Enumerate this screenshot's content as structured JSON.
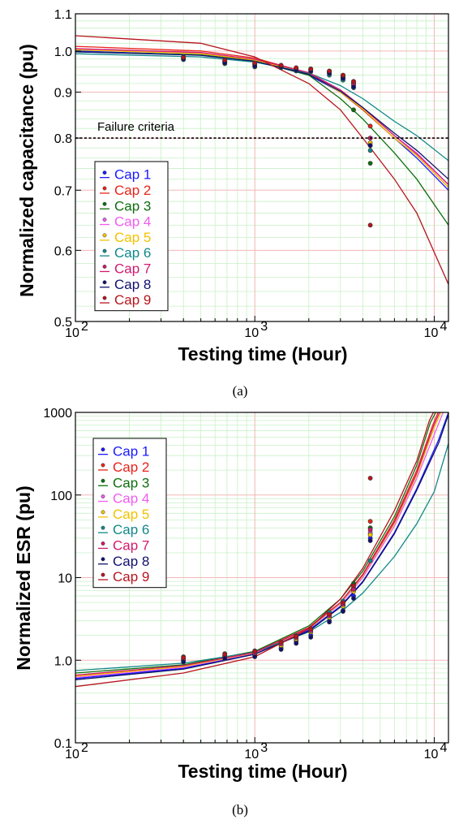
{
  "chart_data": [
    {
      "id": "a",
      "type": "scatter",
      "caption": "(a)",
      "xlabel": "Testing time (Hour)",
      "ylabel": "Normalized capacitance (pu)",
      "x_scale": "log",
      "y_scale": "log",
      "xlim": [
        100,
        12000
      ],
      "ylim": [
        0.5,
        1.1
      ],
      "x_ticks": [
        {
          "v": 100,
          "b": "10",
          "e": "2"
        },
        {
          "v": 1000,
          "b": "10",
          "e": "3"
        },
        {
          "v": 10000,
          "b": "10",
          "e": "4"
        }
      ],
      "y_ticks": [
        {
          "v": 0.5,
          "t": "0.5"
        },
        {
          "v": 0.6,
          "t": "0.6"
        },
        {
          "v": 0.7,
          "t": "0.7"
        },
        {
          "v": 0.8,
          "t": "0.8"
        },
        {
          "v": 0.9,
          "t": "0.9"
        },
        {
          "v": 1.0,
          "t": "1.0"
        },
        {
          "v": 1.1,
          "t": "1.1"
        }
      ],
      "grid": true,
      "legend_position": "bottom-left",
      "threshold": {
        "label": "Failure criteria",
        "value": 0.8
      },
      "x": [
        400,
        680,
        1000,
        1400,
        1700,
        2050,
        2600,
        3100,
        3550,
        4400
      ],
      "series": [
        {
          "name": "Cap 1",
          "color": "#1a1aff",
          "values": [
            0.985,
            0.975,
            0.968,
            0.963,
            0.955,
            0.953,
            0.947,
            0.937,
            0.925,
            0.785
          ],
          "fit": [
            [
              100,
              1.0
            ],
            [
              500,
              0.99
            ],
            [
              1000,
              0.975
            ],
            [
              2000,
              0.94
            ],
            [
              3000,
              0.9
            ],
            [
              4000,
              0.86
            ],
            [
              6000,
              0.8
            ],
            [
              8000,
              0.76
            ],
            [
              12000,
              0.7
            ]
          ]
        },
        {
          "name": "Cap 2",
          "color": "#e8231a",
          "values": [
            0.982,
            0.972,
            0.966,
            0.962,
            0.957,
            0.955,
            0.95,
            0.94,
            0.922,
            0.825
          ],
          "fit": [
            [
              100,
              1.012
            ],
            [
              500,
              1.0
            ],
            [
              1000,
              0.982
            ],
            [
              2000,
              0.945
            ],
            [
              3000,
              0.9
            ],
            [
              4000,
              0.86
            ],
            [
              6000,
              0.8
            ],
            [
              8000,
              0.765
            ],
            [
              12000,
              0.705
            ]
          ]
        },
        {
          "name": "Cap 3",
          "color": "#0e6e0e",
          "values": [
            0.98,
            0.97,
            0.963,
            0.96,
            0.952,
            0.95,
            0.945,
            0.932,
            0.86,
            0.75
          ],
          "fit": [
            [
              100,
              0.998
            ],
            [
              500,
              0.99
            ],
            [
              1000,
              0.975
            ],
            [
              2000,
              0.94
            ],
            [
              3000,
              0.885
            ],
            [
              4000,
              0.84
            ],
            [
              6000,
              0.77
            ],
            [
              8000,
              0.72
            ],
            [
              12000,
              0.64
            ]
          ]
        },
        {
          "name": "Cap 4",
          "color": "#f05cf0",
          "values": [
            0.984,
            0.974,
            0.967,
            0.964,
            0.956,
            0.955,
            0.948,
            0.935,
            0.92,
            0.8
          ],
          "fit": [
            [
              100,
              1.005
            ],
            [
              500,
              0.995
            ],
            [
              1000,
              0.978
            ],
            [
              2000,
              0.945
            ],
            [
              3000,
              0.905
            ],
            [
              4000,
              0.865
            ],
            [
              6000,
              0.805
            ],
            [
              8000,
              0.77
            ],
            [
              12000,
              0.71
            ]
          ]
        },
        {
          "name": "Cap 5",
          "color": "#f2c200",
          "values": [
            0.983,
            0.973,
            0.966,
            0.963,
            0.956,
            0.953,
            0.947,
            0.935,
            0.915,
            0.79
          ],
          "fit": [
            [
              100,
              1.003
            ],
            [
              500,
              0.993
            ],
            [
              1000,
              0.977
            ],
            [
              2000,
              0.943
            ],
            [
              3000,
              0.9
            ],
            [
              4000,
              0.862
            ],
            [
              6000,
              0.8
            ],
            [
              8000,
              0.765
            ],
            [
              12000,
              0.705
            ]
          ]
        },
        {
          "name": "Cap 6",
          "color": "#12878a",
          "values": [
            0.978,
            0.968,
            0.96,
            0.958,
            0.95,
            0.948,
            0.94,
            0.928,
            0.91,
            0.775
          ],
          "fit": [
            [
              100,
              0.993
            ],
            [
              500,
              0.985
            ],
            [
              1000,
              0.972
            ],
            [
              2000,
              0.945
            ],
            [
              3000,
              0.915
            ],
            [
              4000,
              0.885
            ],
            [
              6000,
              0.835
            ],
            [
              8000,
              0.805
            ],
            [
              12000,
              0.755
            ]
          ]
        },
        {
          "name": "Cap 7",
          "color": "#d01a6e",
          "values": [
            0.984,
            0.975,
            0.967,
            0.963,
            0.956,
            0.954,
            0.948,
            0.937,
            0.918,
            0.8
          ],
          "fit": [
            [
              100,
              1.006
            ],
            [
              500,
              0.996
            ],
            [
              1000,
              0.979
            ],
            [
              2000,
              0.946
            ],
            [
              3000,
              0.905
            ],
            [
              4000,
              0.865
            ],
            [
              6000,
              0.805
            ],
            [
              8000,
              0.768
            ],
            [
              12000,
              0.71
            ]
          ]
        },
        {
          "name": "Cap 8",
          "color": "#10106e",
          "values": [
            0.98,
            0.97,
            0.962,
            0.96,
            0.952,
            0.95,
            0.944,
            0.932,
            0.912,
            0.785
          ],
          "fit": [
            [
              100,
              0.998
            ],
            [
              500,
              0.989
            ],
            [
              1000,
              0.974
            ],
            [
              2000,
              0.942
            ],
            [
              3000,
              0.902
            ],
            [
              4000,
              0.865
            ],
            [
              6000,
              0.81
            ],
            [
              8000,
              0.775
            ],
            [
              12000,
              0.72
            ]
          ]
        },
        {
          "name": "Cap 9",
          "color": "#b8141e",
          "values": [
            0.984,
            0.977,
            0.97,
            0.964,
            0.958,
            0.955,
            0.95,
            0.94,
            0.925,
            0.64
          ],
          "fit": [
            [
              100,
              1.04
            ],
            [
              500,
              1.02
            ],
            [
              1000,
              0.985
            ],
            [
              2000,
              0.92
            ],
            [
              3000,
              0.86
            ],
            [
              4000,
              0.8
            ],
            [
              6000,
              0.72
            ],
            [
              8000,
              0.66
            ],
            [
              12000,
              0.55
            ]
          ]
        }
      ]
    },
    {
      "id": "b",
      "type": "scatter",
      "caption": "(b)",
      "xlabel": "Testing time (Hour)",
      "ylabel": "Normalized ESR (pu)",
      "x_scale": "log",
      "y_scale": "log",
      "xlim": [
        100,
        12000
      ],
      "ylim": [
        0.1,
        1000
      ],
      "x_ticks": [
        {
          "v": 100,
          "b": "10",
          "e": "2"
        },
        {
          "v": 1000,
          "b": "10",
          "e": "3"
        },
        {
          "v": 10000,
          "b": "10",
          "e": "4"
        }
      ],
      "y_ticks": [
        {
          "v": 0.1,
          "t": "0.1"
        },
        {
          "v": 1,
          "t": "1.0"
        },
        {
          "v": 10,
          "t": "10"
        },
        {
          "v": 100,
          "t": "100"
        },
        {
          "v": 1000,
          "t": "1000"
        }
      ],
      "grid": true,
      "legend_position": "top-left",
      "x": [
        400,
        680,
        1000,
        1400,
        1700,
        2050,
        2600,
        3100,
        3550,
        4400
      ],
      "series": [
        {
          "name": "Cap 1",
          "color": "#1a1aff",
          "values": [
            1.0,
            1.1,
            1.15,
            1.4,
            1.7,
            2.0,
            3.0,
            4.0,
            6.0,
            30
          ],
          "fit": [
            [
              100,
              0.6
            ],
            [
              400,
              0.8
            ],
            [
              1000,
              1.2
            ],
            [
              2000,
              2.3
            ],
            [
              3000,
              4.5
            ],
            [
              4000,
              9
            ],
            [
              6000,
              35
            ],
            [
              8000,
              120
            ],
            [
              10500,
              450
            ],
            [
              12000,
              1000
            ]
          ]
        },
        {
          "name": "Cap 2",
          "color": "#e8231a",
          "values": [
            1.05,
            1.15,
            1.25,
            1.6,
            1.9,
            2.3,
            3.5,
            4.8,
            7.5,
            48
          ],
          "fit": [
            [
              100,
              0.65
            ],
            [
              400,
              0.85
            ],
            [
              1000,
              1.25
            ],
            [
              2000,
              2.5
            ],
            [
              3000,
              5
            ],
            [
              4000,
              11
            ],
            [
              6000,
              50
            ],
            [
              8000,
              200
            ],
            [
              9800,
              700
            ],
            [
              10500,
              1000
            ]
          ]
        },
        {
          "name": "Cap 3",
          "color": "#0e6e0e",
          "values": [
            0.98,
            1.05,
            1.12,
            1.5,
            1.8,
            2.2,
            3.3,
            4.6,
            8.5,
            40
          ],
          "fit": [
            [
              100,
              0.7
            ],
            [
              400,
              0.88
            ],
            [
              1000,
              1.28
            ],
            [
              2000,
              2.6
            ],
            [
              3000,
              5.5
            ],
            [
              4000,
              12
            ],
            [
              6000,
              55
            ],
            [
              8000,
              230
            ],
            [
              9500,
              750
            ],
            [
              10200,
              1000
            ]
          ]
        },
        {
          "name": "Cap 4",
          "color": "#f05cf0",
          "values": [
            1.02,
            1.12,
            1.2,
            1.55,
            1.85,
            2.25,
            3.4,
            4.7,
            7.0,
            35
          ],
          "fit": [
            [
              100,
              0.62
            ],
            [
              400,
              0.82
            ],
            [
              1000,
              1.22
            ],
            [
              2000,
              2.4
            ],
            [
              3000,
              4.8
            ],
            [
              4000,
              10
            ],
            [
              6000,
              42
            ],
            [
              8000,
              160
            ],
            [
              10200,
              600
            ],
            [
              11200,
              1000
            ]
          ]
        },
        {
          "name": "Cap 5",
          "color": "#f2c200",
          "values": [
            1.0,
            1.1,
            1.18,
            1.5,
            1.8,
            2.2,
            3.3,
            4.5,
            6.8,
            33
          ],
          "fit": [
            [
              100,
              0.64
            ],
            [
              400,
              0.84
            ],
            [
              1000,
              1.23
            ],
            [
              2000,
              2.42
            ],
            [
              3000,
              4.9
            ],
            [
              4000,
              10.5
            ],
            [
              6000,
              45
            ],
            [
              8000,
              175
            ],
            [
              10000,
              650
            ],
            [
              10900,
              1000
            ]
          ]
        },
        {
          "name": "Cap 6",
          "color": "#12878a",
          "values": [
            1.1,
            1.2,
            1.3,
            1.65,
            2.0,
            2.4,
            3.8,
            5.2,
            8.0,
            16
          ],
          "fit": [
            [
              100,
              0.75
            ],
            [
              400,
              0.92
            ],
            [
              1000,
              1.25
            ],
            [
              2000,
              2.2
            ],
            [
              3000,
              3.8
            ],
            [
              4000,
              6.5
            ],
            [
              6000,
              18
            ],
            [
              8000,
              45
            ],
            [
              10000,
              110
            ],
            [
              12000,
              420
            ]
          ]
        },
        {
          "name": "Cap 7",
          "color": "#d01a6e",
          "values": [
            1.03,
            1.13,
            1.22,
            1.58,
            1.88,
            2.28,
            3.45,
            4.75,
            7.2,
            38
          ],
          "fit": [
            [
              100,
              0.66
            ],
            [
              400,
              0.86
            ],
            [
              1000,
              1.24
            ],
            [
              2000,
              2.45
            ],
            [
              3000,
              5
            ],
            [
              4000,
              10.8
            ],
            [
              6000,
              47
            ],
            [
              8000,
              185
            ],
            [
              9900,
              680
            ],
            [
              10700,
              1000
            ]
          ]
        },
        {
          "name": "Cap 8",
          "color": "#10106e",
          "values": [
            0.95,
            1.05,
            1.1,
            1.35,
            1.6,
            1.9,
            2.9,
            3.9,
            5.6,
            28
          ],
          "fit": [
            [
              100,
              0.58
            ],
            [
              400,
              0.78
            ],
            [
              1000,
              1.18
            ],
            [
              2000,
              2.25
            ],
            [
              3000,
              4.4
            ],
            [
              4000,
              8.8
            ],
            [
              6000,
              34
            ],
            [
              8000,
              115
            ],
            [
              10600,
              430
            ],
            [
              12000,
              950
            ]
          ]
        },
        {
          "name": "Cap 9",
          "color": "#b8141e",
          "values": [
            1.08,
            1.18,
            1.28,
            1.65,
            1.95,
            2.4,
            3.6,
            5.0,
            8.0,
            160
          ],
          "fit": [
            [
              100,
              0.48
            ],
            [
              400,
              0.7
            ],
            [
              1000,
              1.1
            ],
            [
              2000,
              2.4
            ],
            [
              3000,
              5.5
            ],
            [
              4000,
              13
            ],
            [
              6000,
              65
            ],
            [
              8000,
              260
            ],
            [
              9400,
              800
            ],
            [
              9900,
              1000
            ]
          ]
        }
      ]
    }
  ]
}
